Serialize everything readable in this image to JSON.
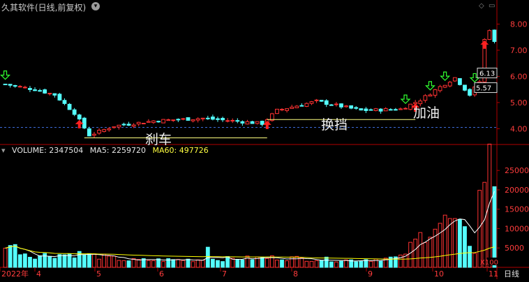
{
  "header": {
    "title": "久其软件(日线,前复权)",
    "icon_info": "settings-circle-icon",
    "icon_up": "red-up-arrow-icon",
    "icon_down": "chevron-down-icon"
  },
  "volume_legend": {
    "volume_label": "VOLUME: 2347504",
    "ma5_label": "MA5: 2259720",
    "ma60_label": "MA60: 497726"
  },
  "annotations": {
    "brake": "刹车",
    "shift": "换挡",
    "accelerate": "加油"
  },
  "price_tags": {
    "high": "6.13",
    "low": "5.57"
  },
  "x_labels": [
    "2022年",
    "4",
    "5",
    "6",
    "7",
    "8",
    "9",
    "10",
    "11",
    "日线"
  ],
  "volume_unit": "X100",
  "colors": {
    "up": "#ff3232",
    "down": "#54ffff",
    "ma": "#ffffff",
    "ma60": "#ffff00",
    "axis": "#b00000",
    "annotation_line": "#ffff80",
    "dash": "#3c6ad8"
  },
  "chart_data": [
    {
      "type": "candlestick",
      "name": "price",
      "y_ticks": [
        4.0,
        5.0,
        6.0,
        7.0,
        8.0
      ],
      "y_tick_labels": [
        "4.00",
        "5.00",
        "6.00",
        "7.00",
        "8.00"
      ],
      "ylim": [
        3.45,
        8.6
      ],
      "reference_level": 4.05,
      "levels": {
        "brake": 3.65,
        "shift": 4.35
      },
      "buy_markers_at_points": [
        15,
        53,
        83,
        97
      ],
      "sell_markers_at_points": [
        0,
        81,
        86,
        89,
        95
      ],
      "anchors": [
        [
          0,
          5.7
        ],
        [
          6,
          5.5
        ],
        [
          10,
          5.3
        ],
        [
          14,
          4.6
        ],
        [
          17,
          3.75
        ],
        [
          22,
          4.1
        ],
        [
          30,
          4.3
        ],
        [
          40,
          4.4
        ],
        [
          52,
          4.2
        ],
        [
          55,
          4.7
        ],
        [
          63,
          5.05
        ],
        [
          72,
          4.7
        ],
        [
          80,
          4.75
        ],
        [
          84,
          5.1
        ],
        [
          88,
          5.6
        ],
        [
          91,
          5.95
        ],
        [
          94,
          5.3
        ],
        [
          96,
          5.8
        ],
        [
          97,
          7.4
        ],
        [
          98,
          7.8
        ],
        [
          99,
          7.3
        ]
      ]
    },
    {
      "type": "bar",
      "name": "volume",
      "y_ticks": [
        5000,
        10000,
        15000,
        20000,
        25000
      ],
      "y_tick_labels": [
        "5000",
        "10000",
        "15000",
        "20000",
        "25000"
      ],
      "ylim": [
        0,
        29000
      ],
      "anchors": [
        [
          0,
          6500
        ],
        [
          5,
          3000
        ],
        [
          15,
          3500
        ],
        [
          25,
          1800
        ],
        [
          40,
          2000
        ],
        [
          55,
          2500
        ],
        [
          70,
          1800
        ],
        [
          80,
          2500
        ],
        [
          84,
          8000
        ],
        [
          87,
          11000
        ],
        [
          90,
          12000
        ],
        [
          93,
          8500
        ],
        [
          95,
          4500
        ],
        [
          96,
          18000
        ],
        [
          97,
          25000
        ],
        [
          98,
          27000
        ],
        [
          99,
          23000
        ]
      ],
      "spike_at_point": 41
    }
  ]
}
